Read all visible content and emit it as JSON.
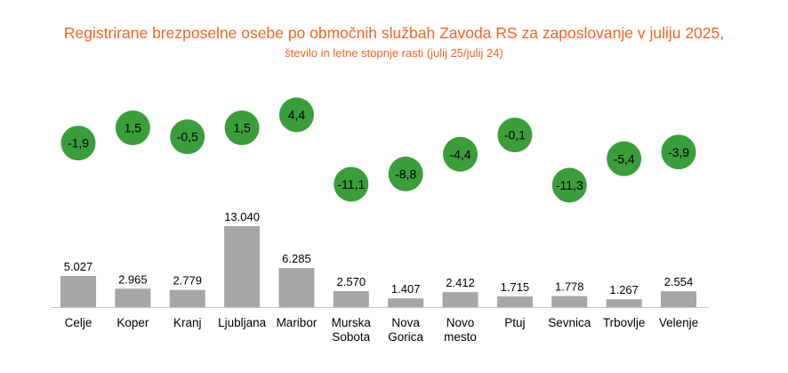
{
  "chart_data": {
    "type": "bar",
    "title": "Registrirane brezposelne osebe po območnih službah Zavoda RS za zaposlovanje v juliju 2025,",
    "subtitle": "število in letne stopnje rasti (julij 25/julij 24)",
    "categories": [
      [
        "Celje"
      ],
      [
        "Koper"
      ],
      [
        "Kranj"
      ],
      [
        "Ljubljana"
      ],
      [
        "Maribor"
      ],
      [
        "Murska",
        "Sobota"
      ],
      [
        "Nova",
        "Gorica"
      ],
      [
        "Novo",
        "mesto"
      ],
      [
        "Ptuj"
      ],
      [
        "Sevnica"
      ],
      [
        "Trbovlje"
      ],
      [
        "Velenje"
      ]
    ],
    "values": [
      5027,
      2965,
      2779,
      13040,
      6285,
      2570,
      1407,
      2412,
      1715,
      1778,
      1267,
      2554
    ],
    "value_labels": [
      "5.027",
      "2.965",
      "2.779",
      "13.040",
      "6.285",
      "2.570",
      "1.407",
      "2.412",
      "1.715",
      "1.778",
      "1.267",
      "2.554"
    ],
    "growth_rates": [
      -1.9,
      1.5,
      -0.5,
      1.5,
      4.4,
      -11.1,
      -8.8,
      -4.4,
      -0.1,
      -11.3,
      -5.4,
      -3.9
    ],
    "growth_labels": [
      "-1,9",
      "1,5",
      "-0,5",
      "1,5",
      "4,4",
      "-11,1",
      "-8,8",
      "-4,4",
      "-0,1",
      "-11,3",
      "-5,4",
      "-3,9"
    ],
    "ylim": [
      0,
      13040
    ],
    "bar_color": "#a6a6a6",
    "bubble_color": "#3a9e3a",
    "title_color": "#f26522",
    "grid": false,
    "legend": "none"
  }
}
